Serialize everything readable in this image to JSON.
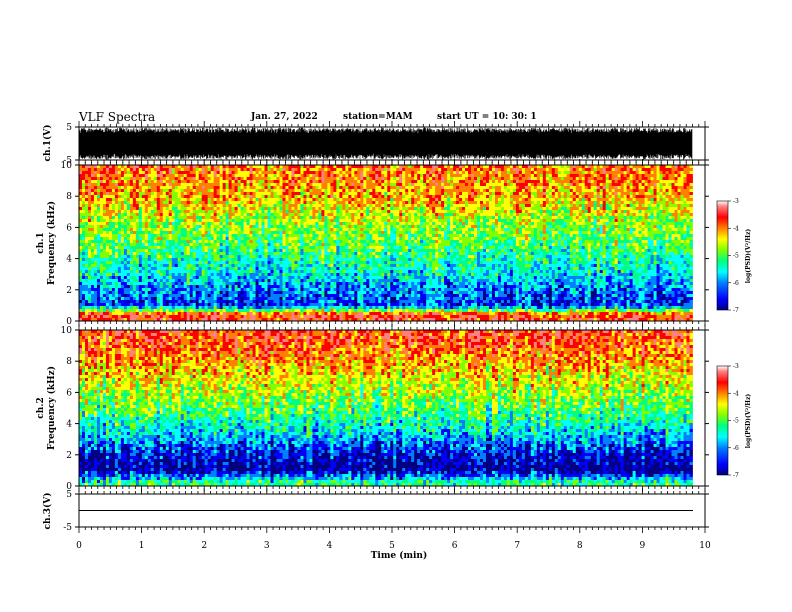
{
  "header": {
    "title": "VLF Spectra",
    "date": "Jan. 27, 2022",
    "station": "station=MAM",
    "start": "start  UT  =   10: 30: 1"
  },
  "colors": {
    "spectrogram_scale": [
      "#000080",
      "#0000ff",
      "#0080ff",
      "#00ffff",
      "#00ff80",
      "#80ff00",
      "#ffff00",
      "#ff8000",
      "#ff0000",
      "#ff8080",
      "#ffffff"
    ],
    "waveform": "#000000"
  },
  "chart_data": [
    {
      "type": "line",
      "name": "ch1-waveform",
      "ylabel": "ch.1(V)",
      "ylim": [
        -5,
        5
      ],
      "yticks": [
        "5",
        "-5"
      ],
      "xlim": [
        0,
        10
      ],
      "description_data": {
        "amplitude_range": [
          -5,
          5
        ],
        "data_extent_min": [
          0,
          9.8
        ]
      }
    },
    {
      "type": "heatmap",
      "name": "ch1-spectrogram",
      "ylabel_line1": "ch.1",
      "ylabel_line2": "Frequency  (kHz)",
      "ylim": [
        0,
        10
      ],
      "yticks": [
        "0",
        "2",
        "4",
        "6",
        "8",
        "10"
      ],
      "xlim": [
        0,
        10
      ],
      "data_extent_min": [
        0,
        9.8
      ],
      "log_psd_profile": [
        {
          "freq_khz": 0.4,
          "value": -3.6
        },
        {
          "freq_khz": 1.0,
          "value": -6.3
        },
        {
          "freq_khz": 2.0,
          "value": -6.0
        },
        {
          "freq_khz": 3.0,
          "value": -5.6
        },
        {
          "freq_khz": 4.0,
          "value": -5.3
        },
        {
          "freq_khz": 5.0,
          "value": -5.0
        },
        {
          "freq_khz": 6.0,
          "value": -4.8
        },
        {
          "freq_khz": 7.0,
          "value": -4.5
        },
        {
          "freq_khz": 8.0,
          "value": -4.2
        },
        {
          "freq_khz": 9.0,
          "value": -4.0
        },
        {
          "freq_khz": 10.0,
          "value": -3.9
        }
      ],
      "colorbar": {
        "range": [
          -7,
          -3
        ],
        "ticks": [
          "-3",
          "-4",
          "-5",
          "-6",
          "-7"
        ],
        "label": "log(PSD)(V²/Hz)"
      }
    },
    {
      "type": "heatmap",
      "name": "ch2-spectrogram",
      "ylabel_line1": "ch.2",
      "ylabel_line2": "Frequency  (kHz)",
      "ylim": [
        0,
        10
      ],
      "yticks": [
        "0",
        "2",
        "4",
        "6",
        "8",
        "10"
      ],
      "xlim": [
        0,
        10
      ],
      "data_extent_min": [
        0,
        9.8
      ],
      "log_psd_profile": [
        {
          "freq_khz": 0.2,
          "value": -5.2
        },
        {
          "freq_khz": 1.0,
          "value": -6.8
        },
        {
          "freq_khz": 2.0,
          "value": -6.5
        },
        {
          "freq_khz": 3.0,
          "value": -5.9
        },
        {
          "freq_khz": 4.0,
          "value": -5.4
        },
        {
          "freq_khz": 5.0,
          "value": -5.0
        },
        {
          "freq_khz": 6.0,
          "value": -4.7
        },
        {
          "freq_khz": 7.0,
          "value": -4.4
        },
        {
          "freq_khz": 8.0,
          "value": -4.1
        },
        {
          "freq_khz": 9.0,
          "value": -3.8
        },
        {
          "freq_khz": 10.0,
          "value": -3.6
        }
      ],
      "colorbar": {
        "range": [
          -7,
          -3
        ],
        "ticks": [
          "-3",
          "-4",
          "-5",
          "-6",
          "-7"
        ],
        "label": "log(PSD)(V²/Hz)"
      }
    },
    {
      "type": "line",
      "name": "ch3-waveform",
      "ylabel": "ch.3(V)",
      "ylim": [
        -5,
        5
      ],
      "yticks": [
        "5",
        "-5"
      ],
      "xlim": [
        0,
        10
      ],
      "values_flat": 0
    }
  ],
  "x_axis": {
    "label": "Time  (min)",
    "ticks": [
      "0",
      "1",
      "2",
      "3",
      "4",
      "5",
      "6",
      "7",
      "8",
      "9",
      "10"
    ]
  }
}
